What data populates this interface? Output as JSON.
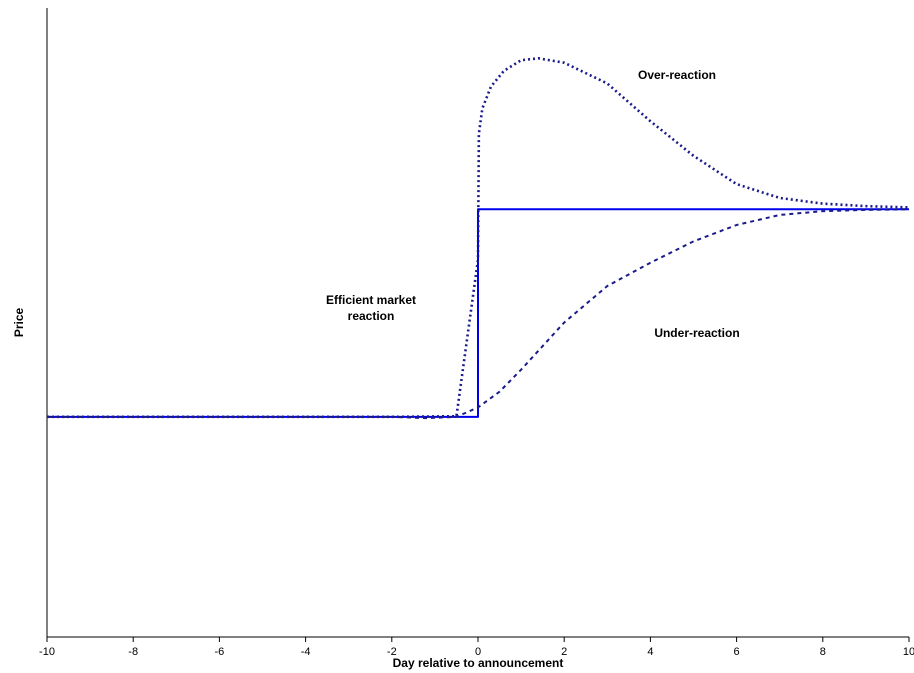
{
  "chart_data": {
    "type": "line",
    "title": "",
    "xlabel": "Day relative to announcement",
    "ylabel": "Price",
    "xlim": [
      -10,
      10
    ],
    "ylim": [
      0,
      100
    ],
    "xticks": [
      "-10",
      "-8",
      "-6",
      "-4",
      "-2",
      "0",
      "2",
      "4",
      "6",
      "8",
      "10"
    ],
    "y_ticks_shown": false,
    "grid": false,
    "legend": "none",
    "annotations": [
      {
        "key": "over",
        "lines": [
          "Over-reaction"
        ]
      },
      {
        "key": "under",
        "lines": [
          "Under-reaction"
        ]
      },
      {
        "key": "efficient",
        "lines": [
          "Efficient market",
          "reaction"
        ]
      }
    ],
    "series": [
      {
        "key": "efficient",
        "style": "solid",
        "color": "#0000ee",
        "x": [
          -10,
          -2,
          0,
          0,
          2,
          4,
          6,
          8,
          10
        ],
        "y": [
          35,
          35,
          35,
          68,
          68,
          68,
          68,
          68,
          68
        ]
      },
      {
        "key": "over",
        "style": "dotted",
        "color": "#1a1a8c",
        "x": [
          -10,
          -2,
          -0.5,
          0,
          0.02,
          0.1,
          0.3,
          0.6,
          1.0,
          1.4,
          2.0,
          3.0,
          4.0,
          5.0,
          6.0,
          7.0,
          8.0,
          9.0,
          10.0
        ],
        "y": [
          35,
          35,
          35.1,
          60,
          80,
          84,
          87.5,
          90,
          91.7,
          92,
          91.3,
          88,
          82,
          76.5,
          72,
          69.8,
          68.9,
          68.5,
          68.3
        ]
      },
      {
        "key": "under",
        "style": "dashed",
        "color": "#1a1a8c",
        "x": [
          -10,
          -2,
          -1.2,
          -0.5,
          0,
          0.5,
          1,
          2,
          3,
          4,
          5,
          6,
          7,
          8,
          9,
          10
        ],
        "y": [
          35,
          35,
          34.8,
          35,
          36.5,
          39,
          42.5,
          50,
          55.8,
          59.5,
          62.9,
          65.5,
          67.1,
          67.7,
          67.9,
          68
        ]
      }
    ]
  }
}
